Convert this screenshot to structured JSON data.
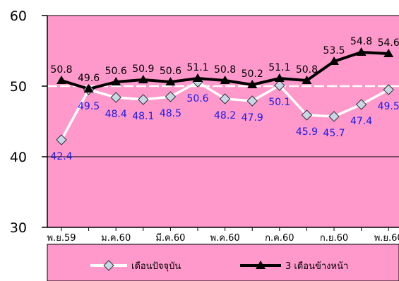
{
  "chart_data": {
    "type": "line",
    "ylim": [
      30,
      60
    ],
    "yticks": [
      "30",
      "40",
      "50",
      "60"
    ],
    "reference_line": 50,
    "grid": true,
    "x_count": 13,
    "x_tick_labels": [
      {
        "index": 0,
        "label": "พ.ย.59"
      },
      {
        "index": 2,
        "label": "ม.ค.60"
      },
      {
        "index": 4,
        "label": "มี.ค.60"
      },
      {
        "index": 6,
        "label": "พ.ค.60"
      },
      {
        "index": 8,
        "label": "ก.ค.60"
      },
      {
        "index": 10,
        "label": "ก.ย.60"
      },
      {
        "index": 12,
        "label": "พ.ย.60",
        "highlight": true
      }
    ],
    "series": [
      {
        "name": "เดือนปัจจุบัน",
        "values": [
          42.4,
          49.5,
          48.4,
          48.1,
          48.5,
          50.6,
          48.2,
          47.9,
          50.1,
          45.9,
          45.7,
          47.4,
          49.5
        ],
        "line_color": "#ffffff",
        "marker": "diamond",
        "marker_fill": "#c8d8e8",
        "label_color": "#1a1ae6"
      },
      {
        "name": "3 เดือนข้างหน้า",
        "values": [
          50.8,
          49.6,
          50.6,
          50.9,
          50.6,
          51.1,
          50.8,
          50.2,
          51.1,
          50.8,
          53.5,
          54.8,
          54.6
        ],
        "line_color": "#000000",
        "marker": "triangle",
        "marker_fill": "#000000",
        "label_color": "#000000"
      }
    ],
    "legend_position": "bottom"
  },
  "colors": {
    "plot_bg": "#ff99cc",
    "highlight_tick": "#1a1ae6"
  }
}
